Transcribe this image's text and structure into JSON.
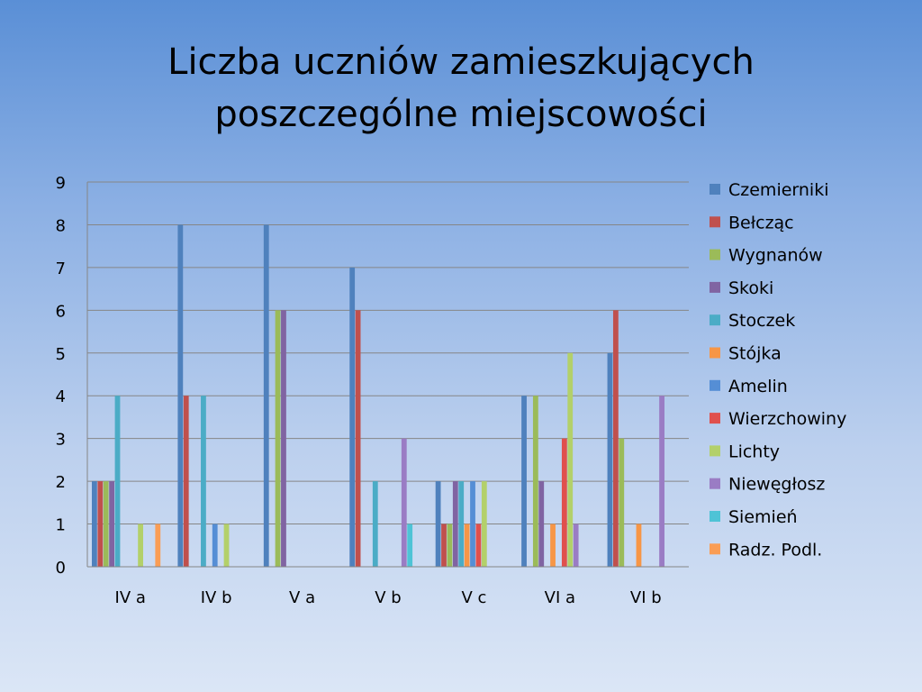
{
  "title": {
    "line1": "Liczba uczniów zamieszkujących",
    "line2": "poszczególne miejscowości"
  },
  "chart_data": {
    "type": "bar",
    "categories": [
      "IV a",
      "IV b",
      "V a",
      "V b",
      "V c",
      "VI a",
      "VI b"
    ],
    "ylim": [
      0,
      9
    ],
    "yticks": [
      0,
      1,
      2,
      3,
      4,
      5,
      6,
      7,
      8,
      9
    ],
    "grid": true,
    "legend_position": "right",
    "series": [
      {
        "name": "Czemierniki",
        "color": "#4f81bd",
        "values": [
          2,
          8,
          8,
          7,
          2,
          4,
          5
        ]
      },
      {
        "name": "Bełcząc",
        "color": "#c0504d",
        "values": [
          2,
          4,
          0,
          6,
          1,
          0,
          6
        ]
      },
      {
        "name": "Wygnanów",
        "color": "#9bbb59",
        "values": [
          2,
          0,
          6,
          0,
          1,
          4,
          3
        ]
      },
      {
        "name": "Skoki",
        "color": "#8064a2",
        "values": [
          2,
          0,
          6,
          0,
          2,
          2,
          0
        ]
      },
      {
        "name": "Stoczek",
        "color": "#4bacc6",
        "values": [
          4,
          4,
          0,
          2,
          2,
          0,
          0
        ]
      },
      {
        "name": "Stójka",
        "color": "#f79646",
        "values": [
          0,
          0,
          0,
          0,
          1,
          1,
          1
        ]
      },
      {
        "name": "Amelin",
        "color": "#558ed5",
        "values": [
          0,
          1,
          0,
          0,
          2,
          0,
          0
        ]
      },
      {
        "name": "Wierzchowiny",
        "color": "#e0504d",
        "values": [
          0,
          0,
          0,
          0,
          1,
          3,
          0
        ]
      },
      {
        "name": "Lichty",
        "color": "#b3d06a",
        "values": [
          1,
          1,
          0,
          0,
          2,
          5,
          0
        ]
      },
      {
        "name": "Niewęgłosz",
        "color": "#9a7cc4",
        "values": [
          0,
          0,
          0,
          3,
          0,
          1,
          4
        ]
      },
      {
        "name": "Siemień",
        "color": "#4ec3d6",
        "values": [
          0,
          0,
          0,
          1,
          0,
          0,
          0
        ]
      },
      {
        "name": "Radz. Podl.",
        "color": "#fa9d55",
        "values": [
          1,
          0,
          0,
          0,
          0,
          0,
          0
        ]
      }
    ]
  }
}
